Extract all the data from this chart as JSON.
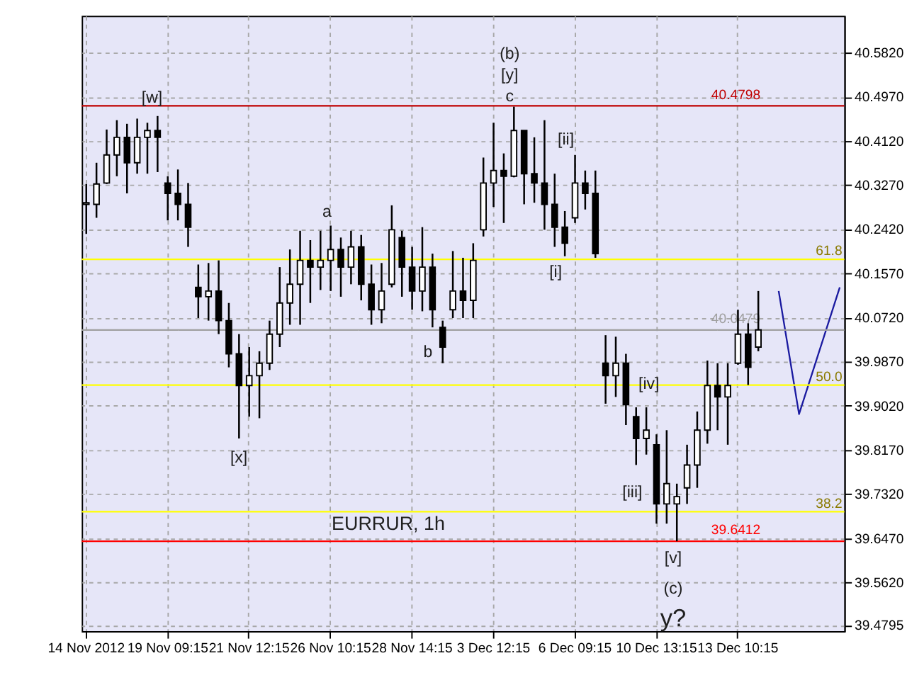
{
  "chart_data": {
    "type": "candlestick",
    "title": "EURRUR, 1h",
    "color": "#000000",
    "grid": true,
    "categories": [
      "14 Nov 2012",
      null,
      null,
      null,
      null,
      null,
      null,
      null,
      "19 Nov 09:15",
      null,
      null,
      null,
      null,
      null,
      null,
      null,
      "21 Nov 12:15",
      null,
      null,
      null,
      null,
      null,
      null,
      null,
      "26 Nov 10:15",
      null,
      null,
      null,
      null,
      null,
      null,
      null,
      "28 Nov 14:15",
      null,
      null,
      null,
      null,
      null,
      null,
      null,
      "3 Dec 12:15",
      null,
      null,
      null,
      null,
      null,
      null,
      null,
      "6 Dec 09:15",
      null,
      null,
      null,
      null,
      null,
      null,
      null,
      "10 Dec 13:15",
      null,
      null,
      null,
      null,
      null,
      null,
      null,
      "13 Dec 10:15",
      null,
      null,
      null,
      null,
      null,
      null,
      null,
      null,
      null,
      null
    ],
    "ohlc": [
      [
        40.29,
        40.329,
        40.233,
        40.293
      ],
      [
        40.29,
        40.37,
        40.264,
        40.329
      ],
      [
        40.331,
        40.434,
        40.329,
        40.385
      ],
      [
        40.385,
        40.452,
        40.344,
        40.419
      ],
      [
        40.419,
        40.445,
        40.311,
        40.37
      ],
      [
        40.37,
        40.455,
        40.349,
        40.419
      ],
      [
        40.419,
        40.447,
        40.349,
        40.432
      ],
      [
        40.432,
        40.46,
        40.352,
        40.419
      ],
      [
        40.331,
        40.344,
        40.259,
        40.311
      ],
      [
        40.311,
        40.357,
        40.259,
        40.29
      ],
      [
        40.29,
        40.331,
        40.208,
        40.246
      ],
      [
        40.13,
        40.174,
        40.071,
        40.112
      ],
      [
        40.112,
        40.177,
        40.066,
        40.123
      ],
      [
        40.123,
        40.182,
        40.04,
        40.066
      ],
      [
        40.066,
        40.1,
        39.976,
        40.002
      ],
      [
        40.002,
        40.04,
        39.839,
        39.941
      ],
      [
        39.941,
        40.015,
        39.881,
        39.96
      ],
      [
        39.96,
        40.007,
        39.878,
        39.984
      ],
      [
        39.984,
        40.066,
        39.971,
        40.04
      ],
      [
        40.04,
        40.169,
        40.015,
        40.1
      ],
      [
        40.1,
        40.203,
        40.058,
        40.136
      ],
      [
        40.136,
        40.239,
        40.058,
        40.182
      ],
      [
        40.182,
        40.221,
        40.1,
        40.169
      ],
      [
        40.169,
        40.239,
        40.125,
        40.182
      ],
      [
        40.182,
        40.249,
        40.123,
        40.203
      ],
      [
        40.203,
        40.226,
        40.112,
        40.169
      ],
      [
        40.169,
        40.239,
        40.136,
        40.208
      ],
      [
        40.208,
        40.231,
        40.105,
        40.136
      ],
      [
        40.136,
        40.174,
        40.058,
        40.087
      ],
      [
        40.087,
        40.177,
        40.061,
        40.123
      ],
      [
        40.136,
        40.288,
        40.13,
        40.241
      ],
      [
        40.226,
        40.239,
        40.112,
        40.169
      ],
      [
        40.169,
        40.208,
        40.087,
        40.123
      ],
      [
        40.123,
        40.246,
        40.084,
        40.169
      ],
      [
        40.169,
        40.195,
        40.053,
        40.087
      ],
      [
        40.053,
        40.066,
        39.984,
        40.015
      ],
      [
        40.087,
        40.2,
        40.071,
        40.123
      ],
      [
        40.123,
        40.187,
        40.071,
        40.105
      ],
      [
        40.105,
        40.215,
        40.071,
        40.182
      ],
      [
        40.241,
        40.38,
        40.228,
        40.331
      ],
      [
        40.331,
        40.447,
        40.285,
        40.355
      ],
      [
        40.355,
        40.388,
        40.254,
        40.344
      ],
      [
        40.344,
        40.478,
        40.342,
        40.432
      ],
      [
        40.432,
        40.432,
        40.29,
        40.349
      ],
      [
        40.349,
        40.419,
        40.293,
        40.331
      ],
      [
        40.331,
        40.452,
        40.241,
        40.29
      ],
      [
        40.29,
        40.349,
        40.208,
        40.246
      ],
      [
        40.246,
        40.277,
        40.19,
        40.215
      ],
      [
        40.264,
        40.385,
        40.254,
        40.331
      ],
      [
        40.331,
        40.355,
        40.28,
        40.311
      ],
      [
        40.311,
        40.355,
        40.187,
        40.195
      ],
      [
        39.984,
        40.038,
        39.906,
        39.96
      ],
      [
        39.96,
        40.035,
        39.919,
        39.984
      ],
      [
        39.984,
        40.002,
        39.865,
        39.904
      ],
      [
        39.881,
        39.899,
        39.788,
        39.839
      ],
      [
        39.839,
        39.899,
        39.808,
        39.855
      ],
      [
        39.827,
        39.847,
        39.675,
        39.713
      ],
      [
        39.713,
        39.855,
        39.675,
        39.752
      ],
      [
        39.713,
        39.752,
        39.641,
        39.727
      ],
      [
        39.744,
        39.827,
        39.713,
        39.788
      ],
      [
        39.788,
        39.891,
        39.744,
        39.855
      ],
      [
        39.855,
        39.989,
        39.829,
        39.941
      ],
      [
        39.941,
        39.984,
        39.855,
        39.919
      ],
      [
        39.919,
        39.984,
        39.827,
        39.941
      ],
      [
        39.984,
        40.087,
        39.981,
        40.04
      ],
      [
        40.04,
        40.061,
        39.942,
        39.976
      ],
      [
        40.015,
        40.123,
        40.007,
        40.048
      ],
      null,
      null,
      null,
      null,
      null,
      null,
      null,
      null
    ],
    "series": [
      {
        "type": "line",
        "color": "#1a1aa0",
        "values": [
          null,
          null,
          null,
          null,
          null,
          null,
          null,
          null,
          null,
          null,
          null,
          null,
          null,
          null,
          null,
          null,
          null,
          null,
          null,
          null,
          null,
          null,
          null,
          null,
          null,
          null,
          null,
          null,
          null,
          null,
          null,
          null,
          null,
          null,
          null,
          null,
          null,
          null,
          null,
          null,
          null,
          null,
          null,
          null,
          null,
          null,
          null,
          null,
          null,
          null,
          null,
          null,
          null,
          null,
          null,
          null,
          null,
          null,
          null,
          null,
          null,
          null,
          null,
          null,
          null,
          null,
          null,
          null,
          40.123,
          null,
          39.886,
          null,
          null,
          null,
          40.13
        ]
      }
    ],
    "ylim": [
      39.468,
      40.653
    ],
    "yticks": [
      {
        "value": 40.582,
        "label": "40.5820"
      },
      {
        "value": 40.497,
        "label": "40.4970"
      },
      {
        "value": 40.412,
        "label": "40.4120"
      },
      {
        "value": 40.327,
        "label": "40.3270"
      },
      {
        "value": 40.242,
        "label": "40.2420"
      },
      {
        "value": 40.157,
        "label": "40.1570"
      },
      {
        "value": 40.072,
        "label": "40.0720"
      },
      {
        "value": 39.987,
        "label": "39.9870"
      },
      {
        "value": 39.902,
        "label": "39.9020"
      },
      {
        "value": 39.817,
        "label": "39.8170"
      },
      {
        "value": 39.732,
        "label": "39.7320"
      },
      {
        "value": 39.647,
        "label": "39.6470"
      },
      {
        "value": 39.562,
        "label": "39.5620"
      },
      {
        "value": 39.4795,
        "label": "39.4795"
      }
    ],
    "ref_lines": [
      {
        "axis": "y",
        "value": 40.4798,
        "label": "40.4798",
        "color": "#c00000"
      },
      {
        "axis": "y",
        "value": 39.6412,
        "label": "39.6412",
        "color": "#ff0000"
      },
      {
        "axis": "y",
        "value": 40.0479,
        "label": "40.0479",
        "color": "#a0a0a0"
      },
      {
        "axis": "y",
        "value": 40.184,
        "color": "#ffff00"
      },
      {
        "axis": "y",
        "value": 39.942,
        "color": "#ffff00"
      },
      {
        "axis": "y",
        "value": 39.698,
        "color": "#ffff00"
      }
    ],
    "annotations": [
      "[w]",
      "a",
      "[x]",
      "b",
      "(b)",
      "[y]",
      "c",
      "[ii]",
      "[i]",
      "[iv]",
      "[iii]",
      "[v]",
      "(c)",
      "y?",
      "61.8",
      "50.0",
      "38.2"
    ]
  }
}
